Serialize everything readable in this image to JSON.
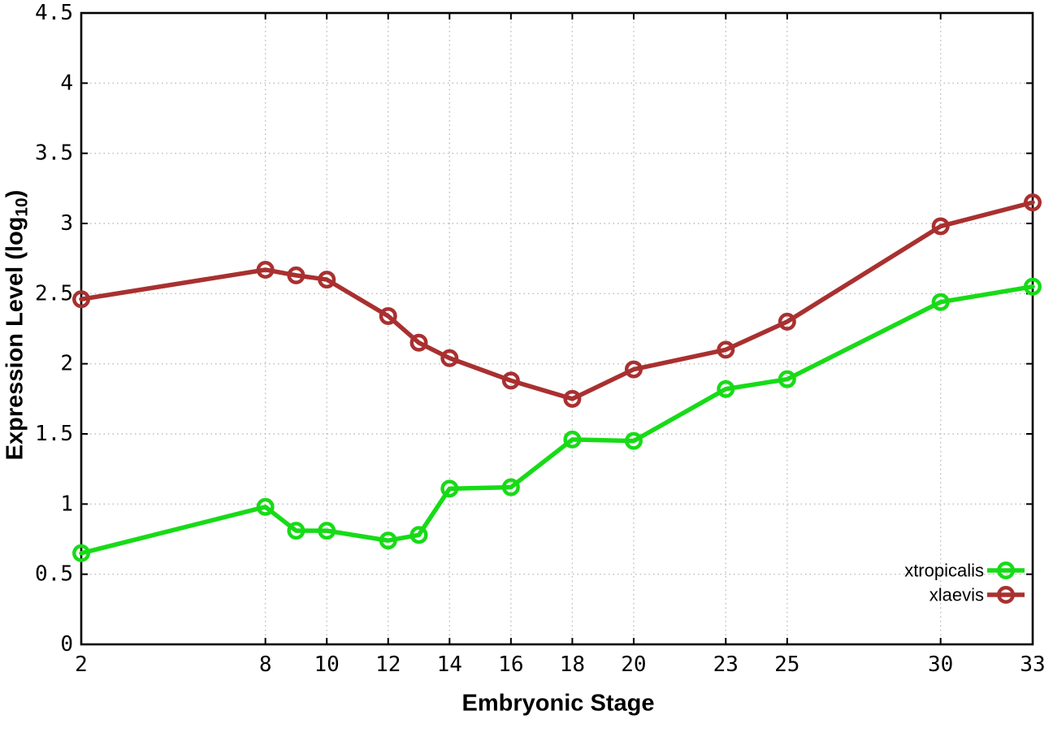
{
  "chart_data": {
    "type": "line",
    "title": "",
    "xlabel": "Embryonic Stage",
    "ylabel": "Expression Level (log10)",
    "x": [
      2,
      8,
      9,
      10,
      12,
      13,
      14,
      16,
      18,
      20,
      23,
      25,
      30,
      33
    ],
    "series": [
      {
        "name": "xtropicalis",
        "color": "#17db17",
        "values": [
          0.65,
          0.98,
          0.81,
          0.81,
          0.74,
          0.78,
          1.11,
          1.12,
          1.46,
          1.45,
          1.82,
          1.89,
          2.44,
          2.55
        ]
      },
      {
        "name": "xlaevis",
        "color": "#a93030",
        "values": [
          2.46,
          2.67,
          2.63,
          2.6,
          2.34,
          2.15,
          2.04,
          1.88,
          1.75,
          1.96,
          2.1,
          2.3,
          2.98,
          3.15
        ]
      }
    ],
    "xlim": [
      2,
      33
    ],
    "ylim": [
      0,
      4.5
    ],
    "xticks": [
      2,
      8,
      10,
      12,
      14,
      16,
      18,
      20,
      23,
      25,
      30,
      33
    ],
    "yticks": [
      0,
      0.5,
      1,
      1.5,
      2,
      2.5,
      3,
      3.5,
      4,
      4.5
    ],
    "grid": true,
    "grid_style": "dotted",
    "legend_position": "inside-bottom-right",
    "marker": "open-circle"
  },
  "axis_titles": {
    "x": "Embryonic Stage",
    "y_main": "Expression Level (log",
    "y_sub": "10",
    "y_close": ")"
  },
  "legend": {
    "entries": [
      "xtropicalis",
      "xlaevis"
    ]
  },
  "colors": {
    "xtropicalis": "#17db17",
    "xlaevis": "#a93030",
    "grid": "#bcbcbc",
    "axis": "#000000",
    "text": "#000000",
    "background": "#ffffff"
  }
}
